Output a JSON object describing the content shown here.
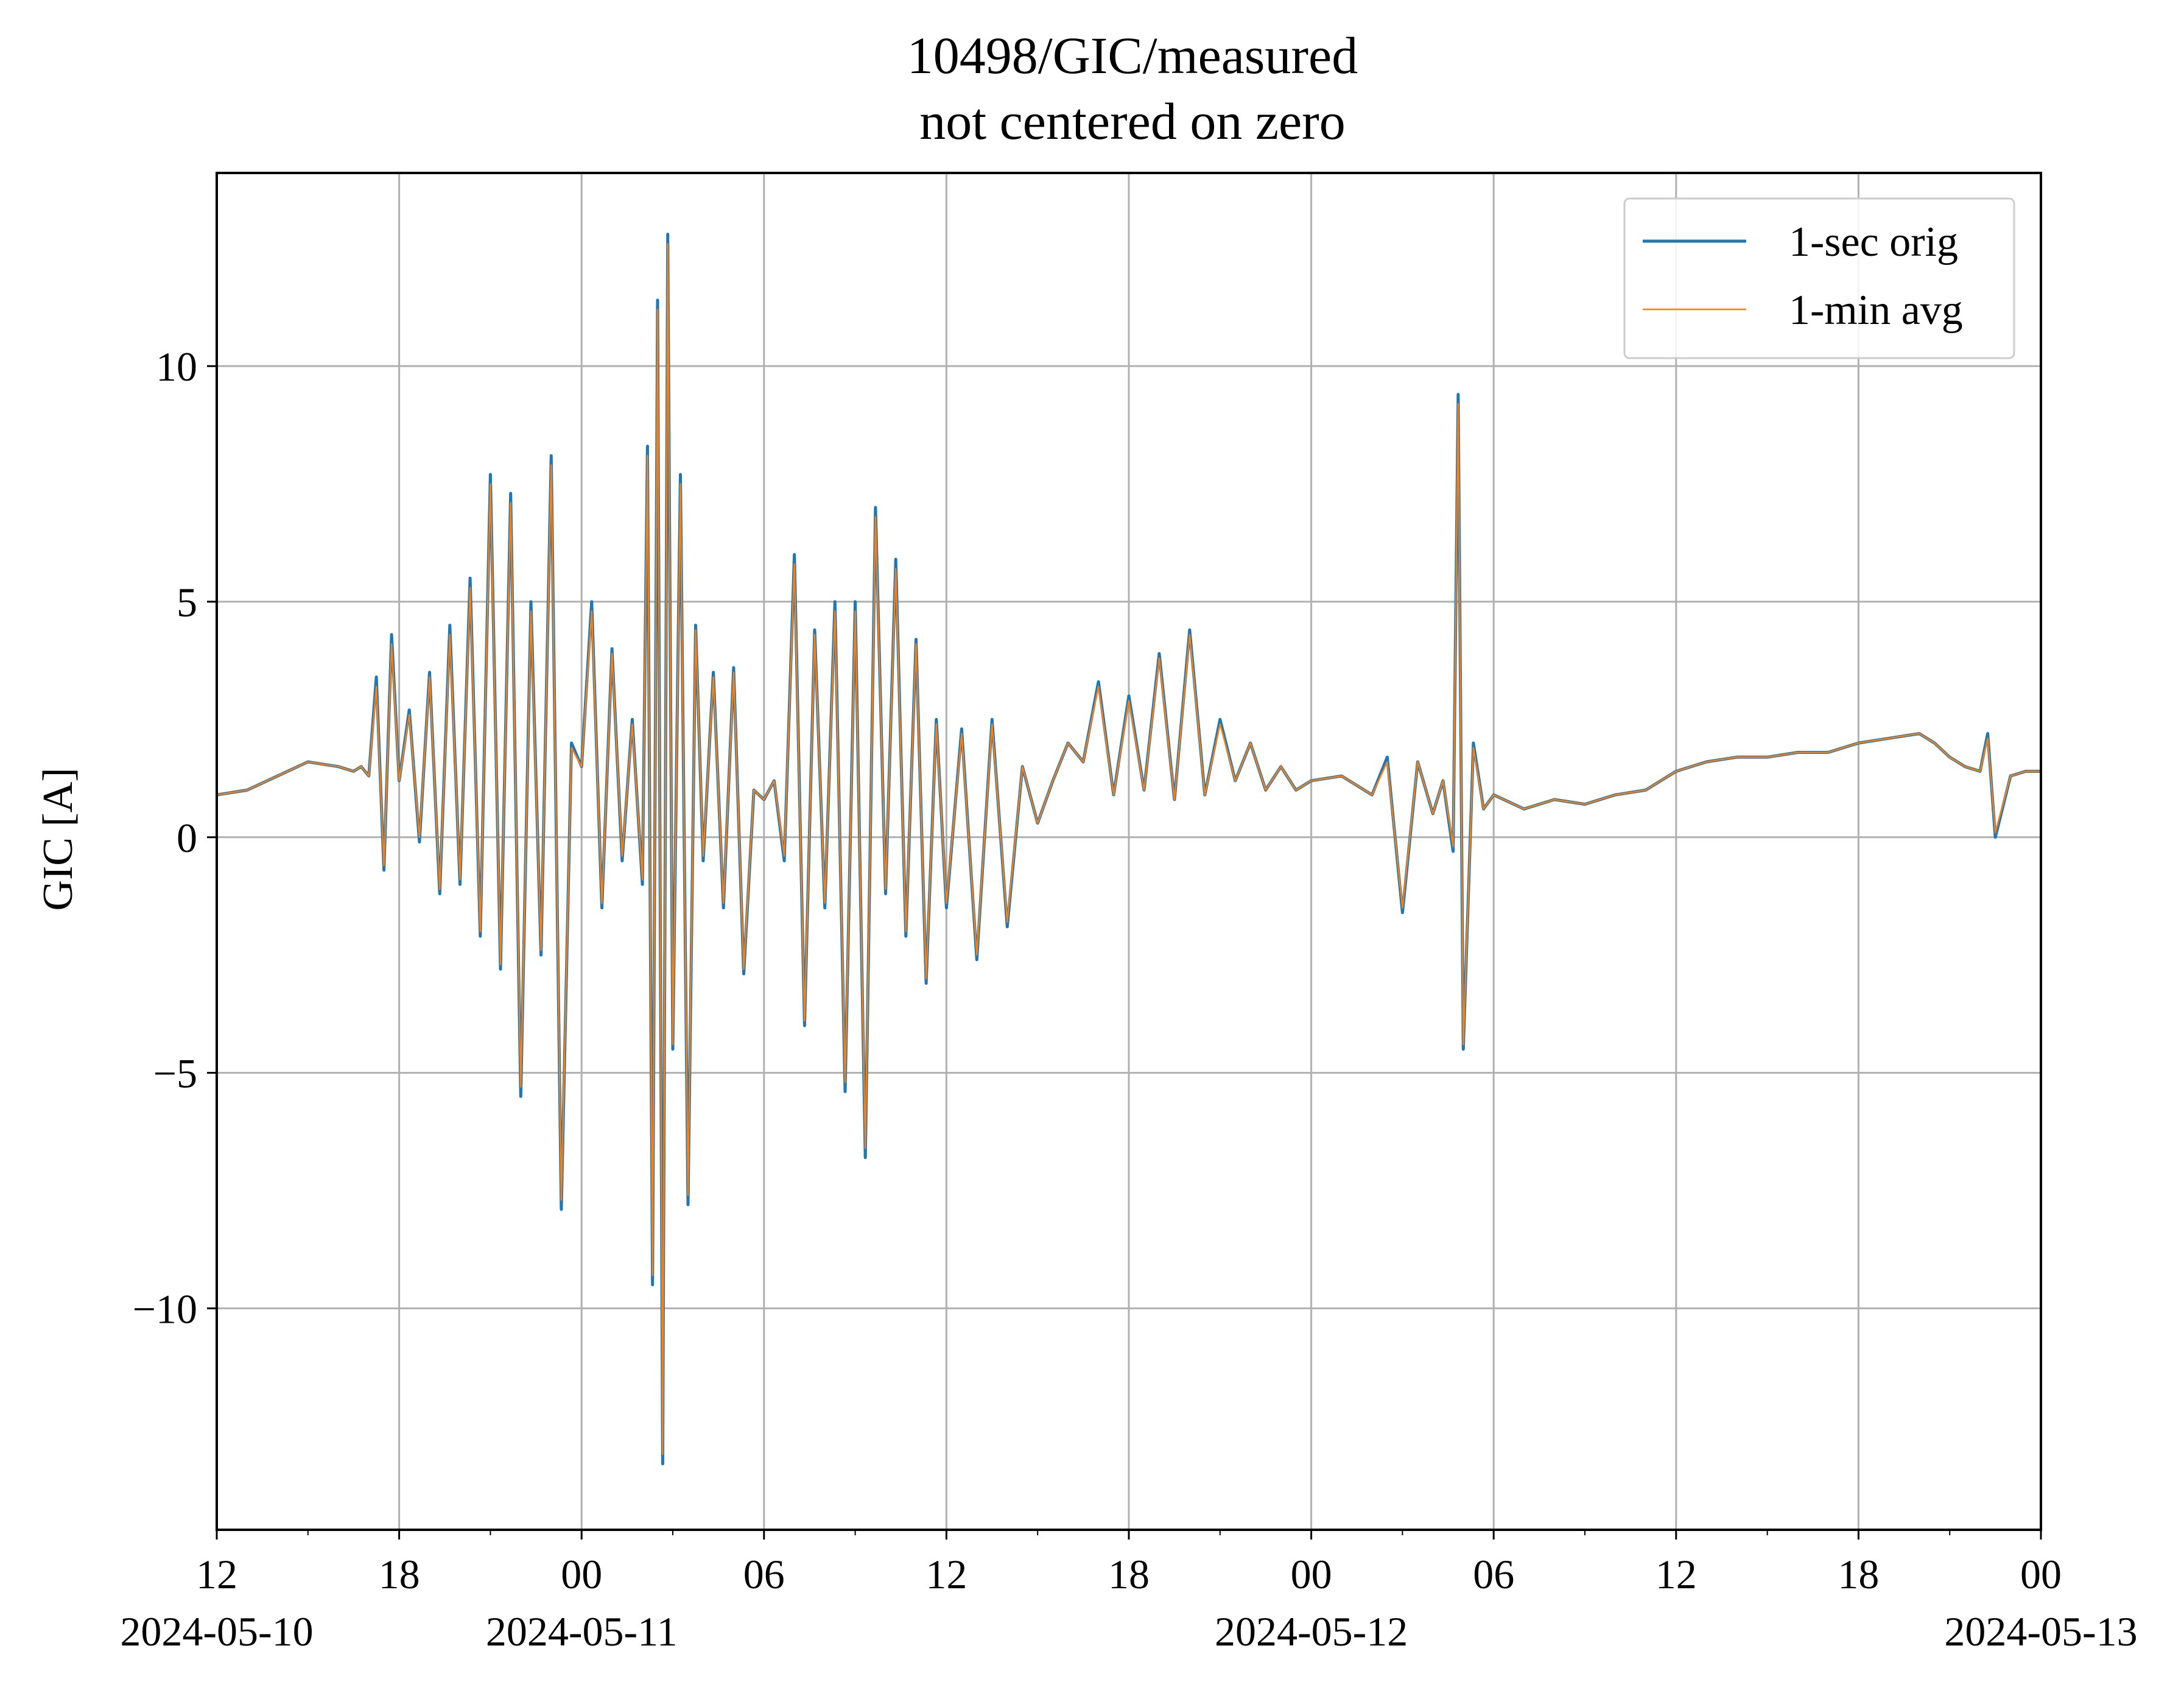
{
  "chart_data": {
    "type": "line",
    "title": "10498/GIC/measured",
    "subtitle": "not centered on zero",
    "ylabel": "GIC [A]",
    "xlabel": "",
    "xlim": [
      "2024-05-10T12:00",
      "2024-05-13T00:00"
    ],
    "ylim": [
      -14.7,
      14.1
    ],
    "grid": true,
    "legend_position": "top-right",
    "y_ticks": [
      {
        "value": 10,
        "label": "10"
      },
      {
        "value": 5,
        "label": "5"
      },
      {
        "value": 0,
        "label": "0"
      },
      {
        "value": -5,
        "label": "−5"
      },
      {
        "value": -10,
        "label": "−10"
      }
    ],
    "x_ticks": [
      {
        "time": "2024-05-10T12:00",
        "label": "12",
        "date_label": "2024-05-10"
      },
      {
        "time": "2024-05-10T18:00",
        "label": "18",
        "date_label": ""
      },
      {
        "time": "2024-05-11T00:00",
        "label": "00",
        "date_label": "2024-05-11"
      },
      {
        "time": "2024-05-11T06:00",
        "label": "06",
        "date_label": ""
      },
      {
        "time": "2024-05-11T12:00",
        "label": "12",
        "date_label": ""
      },
      {
        "time": "2024-05-11T18:00",
        "label": "18",
        "date_label": ""
      },
      {
        "time": "2024-05-12T00:00",
        "label": "00",
        "date_label": "2024-05-12"
      },
      {
        "time": "2024-05-12T06:00",
        "label": "06",
        "date_label": ""
      },
      {
        "time": "2024-05-12T12:00",
        "label": "12",
        "date_label": ""
      },
      {
        "time": "2024-05-12T18:00",
        "label": "18",
        "date_label": ""
      },
      {
        "time": "2024-05-13T00:00",
        "label": "00",
        "date_label": "2024-05-13"
      }
    ],
    "series": [
      {
        "name": "1-sec orig",
        "color": "#1f77b4",
        "x": [
          "2024-05-10T12:00",
          "2024-05-10T13:00",
          "2024-05-10T14:00",
          "2024-05-10T15:00",
          "2024-05-10T16:00",
          "2024-05-10T16:30",
          "2024-05-10T16:45",
          "2024-05-10T17:00",
          "2024-05-10T17:15",
          "2024-05-10T17:30",
          "2024-05-10T17:45",
          "2024-05-10T18:00",
          "2024-05-10T18:20",
          "2024-05-10T18:40",
          "2024-05-10T19:00",
          "2024-05-10T19:20",
          "2024-05-10T19:40",
          "2024-05-10T20:00",
          "2024-05-10T20:20",
          "2024-05-10T20:40",
          "2024-05-10T21:00",
          "2024-05-10T21:20",
          "2024-05-10T21:40",
          "2024-05-10T22:00",
          "2024-05-10T22:20",
          "2024-05-10T22:40",
          "2024-05-10T23:00",
          "2024-05-10T23:20",
          "2024-05-10T23:40",
          "2024-05-11T00:00",
          "2024-05-11T00:20",
          "2024-05-11T00:40",
          "2024-05-11T01:00",
          "2024-05-11T01:20",
          "2024-05-11T01:40",
          "2024-05-11T02:00",
          "2024-05-11T02:10",
          "2024-05-11T02:20",
          "2024-05-11T02:30",
          "2024-05-11T02:40",
          "2024-05-11T02:50",
          "2024-05-11T03:00",
          "2024-05-11T03:15",
          "2024-05-11T03:30",
          "2024-05-11T03:45",
          "2024-05-11T04:00",
          "2024-05-11T04:20",
          "2024-05-11T04:40",
          "2024-05-11T05:00",
          "2024-05-11T05:20",
          "2024-05-11T05:40",
          "2024-05-11T06:00",
          "2024-05-11T06:20",
          "2024-05-11T06:40",
          "2024-05-11T07:00",
          "2024-05-11T07:20",
          "2024-05-11T07:40",
          "2024-05-11T08:00",
          "2024-05-11T08:20",
          "2024-05-11T08:40",
          "2024-05-11T09:00",
          "2024-05-11T09:20",
          "2024-05-11T09:40",
          "2024-05-11T10:00",
          "2024-05-11T10:20",
          "2024-05-11T10:40",
          "2024-05-11T11:00",
          "2024-05-11T11:20",
          "2024-05-11T11:40",
          "2024-05-11T12:00",
          "2024-05-11T12:30",
          "2024-05-11T13:00",
          "2024-05-11T13:30",
          "2024-05-11T14:00",
          "2024-05-11T14:30",
          "2024-05-11T15:00",
          "2024-05-11T15:30",
          "2024-05-11T16:00",
          "2024-05-11T16:30",
          "2024-05-11T17:00",
          "2024-05-11T17:30",
          "2024-05-11T18:00",
          "2024-05-11T18:30",
          "2024-05-11T19:00",
          "2024-05-11T19:30",
          "2024-05-11T20:00",
          "2024-05-11T20:30",
          "2024-05-11T21:00",
          "2024-05-11T21:30",
          "2024-05-11T22:00",
          "2024-05-11T22:30",
          "2024-05-11T23:00",
          "2024-05-11T23:30",
          "2024-05-12T00:00",
          "2024-05-12T01:00",
          "2024-05-12T02:00",
          "2024-05-12T02:30",
          "2024-05-12T03:00",
          "2024-05-12T03:30",
          "2024-05-12T04:00",
          "2024-05-12T04:20",
          "2024-05-12T04:40",
          "2024-05-12T04:50",
          "2024-05-12T05:00",
          "2024-05-12T05:20",
          "2024-05-12T05:40",
          "2024-05-12T06:00",
          "2024-05-12T07:00",
          "2024-05-12T08:00",
          "2024-05-12T09:00",
          "2024-05-12T10:00",
          "2024-05-12T11:00",
          "2024-05-12T12:00",
          "2024-05-12T13:00",
          "2024-05-12T14:00",
          "2024-05-12T15:00",
          "2024-05-12T16:00",
          "2024-05-12T17:00",
          "2024-05-12T18:00",
          "2024-05-12T19:00",
          "2024-05-12T20:00",
          "2024-05-12T20:30",
          "2024-05-12T21:00",
          "2024-05-12T21:30",
          "2024-05-12T22:00",
          "2024-05-12T22:15",
          "2024-05-12T22:30",
          "2024-05-12T23:00",
          "2024-05-12T23:30",
          "2024-05-13T00:00"
        ],
        "y": [
          0.9,
          1.0,
          1.3,
          1.6,
          1.5,
          1.4,
          1.5,
          1.3,
          3.4,
          -0.7,
          4.3,
          1.2,
          2.7,
          -0.1,
          3.5,
          -1.2,
          4.5,
          -1.0,
          5.5,
          -2.1,
          7.7,
          -2.8,
          7.3,
          -5.5,
          5.0,
          -2.5,
          8.1,
          -7.9,
          2.0,
          1.5,
          5.0,
          -1.5,
          4.0,
          -0.5,
          2.5,
          -1.0,
          8.3,
          -9.5,
          11.4,
          -13.3,
          12.8,
          -4.5,
          7.7,
          -7.8,
          4.5,
          -0.5,
          3.5,
          -1.5,
          3.6,
          -2.9,
          1.0,
          0.8,
          1.2,
          -0.5,
          6.0,
          -4.0,
          4.4,
          -1.5,
          5.0,
          -5.4,
          5.0,
          -6.8,
          7.0,
          -1.2,
          5.9,
          -2.1,
          4.2,
          -3.1,
          2.5,
          -1.5,
          2.3,
          -2.6,
          2.5,
          -1.9,
          1.5,
          0.3,
          1.2,
          2.0,
          1.6,
          3.3,
          0.9,
          3.0,
          1.0,
          3.9,
          0.8,
          4.4,
          0.9,
          2.5,
          1.2,
          2.0,
          1.0,
          1.5,
          1.0,
          1.2,
          1.3,
          0.9,
          1.7,
          -1.6,
          1.6,
          0.5,
          1.2,
          -0.3,
          9.4,
          -4.5,
          2.0,
          0.6,
          0.9,
          0.6,
          0.8,
          0.7,
          0.9,
          1.0,
          1.4,
          1.6,
          1.7,
          1.7,
          1.8,
          1.8,
          2.0,
          2.1,
          2.2,
          2.0,
          1.7,
          1.5,
          1.4,
          2.2,
          0.0,
          1.3,
          1.4,
          1.4
        ]
      },
      {
        "name": "1-min avg",
        "color": "#ff7f0e",
        "x": [
          "2024-05-10T12:00",
          "2024-05-10T13:00",
          "2024-05-10T14:00",
          "2024-05-10T15:00",
          "2024-05-10T16:00",
          "2024-05-10T16:30",
          "2024-05-10T16:45",
          "2024-05-10T17:00",
          "2024-05-10T17:15",
          "2024-05-10T17:30",
          "2024-05-10T17:45",
          "2024-05-10T18:00",
          "2024-05-10T18:20",
          "2024-05-10T18:40",
          "2024-05-10T19:00",
          "2024-05-10T19:20",
          "2024-05-10T19:40",
          "2024-05-10T20:00",
          "2024-05-10T20:20",
          "2024-05-10T20:40",
          "2024-05-10T21:00",
          "2024-05-10T21:20",
          "2024-05-10T21:40",
          "2024-05-10T22:00",
          "2024-05-10T22:20",
          "2024-05-10T22:40",
          "2024-05-10T23:00",
          "2024-05-10T23:20",
          "2024-05-10T23:40",
          "2024-05-11T00:00",
          "2024-05-11T00:20",
          "2024-05-11T00:40",
          "2024-05-11T01:00",
          "2024-05-11T01:20",
          "2024-05-11T01:40",
          "2024-05-11T02:00",
          "2024-05-11T02:10",
          "2024-05-11T02:20",
          "2024-05-11T02:30",
          "2024-05-11T02:40",
          "2024-05-11T02:50",
          "2024-05-11T03:00",
          "2024-05-11T03:15",
          "2024-05-11T03:30",
          "2024-05-11T03:45",
          "2024-05-11T04:00",
          "2024-05-11T04:20",
          "2024-05-11T04:40",
          "2024-05-11T05:00",
          "2024-05-11T05:20",
          "2024-05-11T05:40",
          "2024-05-11T06:00",
          "2024-05-11T06:20",
          "2024-05-11T06:40",
          "2024-05-11T07:00",
          "2024-05-11T07:20",
          "2024-05-11T07:40",
          "2024-05-11T08:00",
          "2024-05-11T08:20",
          "2024-05-11T08:40",
          "2024-05-11T09:00",
          "2024-05-11T09:20",
          "2024-05-11T09:40",
          "2024-05-11T10:00",
          "2024-05-11T10:20",
          "2024-05-11T10:40",
          "2024-05-11T11:00",
          "2024-05-11T11:20",
          "2024-05-11T11:40",
          "2024-05-11T12:00",
          "2024-05-11T12:30",
          "2024-05-11T13:00",
          "2024-05-11T13:30",
          "2024-05-11T14:00",
          "2024-05-11T14:30",
          "2024-05-11T15:00",
          "2024-05-11T15:30",
          "2024-05-11T16:00",
          "2024-05-11T16:30",
          "2024-05-11T17:00",
          "2024-05-11T17:30",
          "2024-05-11T18:00",
          "2024-05-11T18:30",
          "2024-05-11T19:00",
          "2024-05-11T19:30",
          "2024-05-11T20:00",
          "2024-05-11T20:30",
          "2024-05-11T21:00",
          "2024-05-11T21:30",
          "2024-05-11T22:00",
          "2024-05-11T22:30",
          "2024-05-11T23:00",
          "2024-05-11T23:30",
          "2024-05-12T00:00",
          "2024-05-12T01:00",
          "2024-05-12T02:00",
          "2024-05-12T02:30",
          "2024-05-12T03:00",
          "2024-05-12T03:30",
          "2024-05-12T04:00",
          "2024-05-12T04:20",
          "2024-05-12T04:40",
          "2024-05-12T04:50",
          "2024-05-12T05:00",
          "2024-05-12T05:20",
          "2024-05-12T05:40",
          "2024-05-12T06:00",
          "2024-05-12T07:00",
          "2024-05-12T08:00",
          "2024-05-12T09:00",
          "2024-05-12T10:00",
          "2024-05-12T11:00",
          "2024-05-12T12:00",
          "2024-05-12T13:00",
          "2024-05-12T14:00",
          "2024-05-12T15:00",
          "2024-05-12T16:00",
          "2024-05-12T17:00",
          "2024-05-12T18:00",
          "2024-05-12T19:00",
          "2024-05-12T20:00",
          "2024-05-12T20:30",
          "2024-05-12T21:00",
          "2024-05-12T21:30",
          "2024-05-12T22:00",
          "2024-05-12T22:15",
          "2024-05-12T22:30",
          "2024-05-12T23:00",
          "2024-05-12T23:30",
          "2024-05-13T00:00"
        ],
        "y": [
          0.9,
          1.0,
          1.3,
          1.6,
          1.5,
          1.4,
          1.5,
          1.3,
          3.2,
          -0.6,
          4.1,
          1.2,
          2.6,
          0.0,
          3.4,
          -1.1,
          4.3,
          -0.9,
          5.3,
          -2.0,
          7.5,
          -2.7,
          7.1,
          -5.3,
          4.8,
          -2.4,
          7.9,
          -7.7,
          1.9,
          1.5,
          4.8,
          -1.4,
          3.9,
          -0.4,
          2.4,
          -0.9,
          8.1,
          -9.3,
          11.2,
          -13.1,
          12.6,
          -4.4,
          7.5,
          -7.6,
          4.4,
          -0.4,
          3.4,
          -1.4,
          3.5,
          -2.8,
          1.0,
          0.8,
          1.2,
          -0.4,
          5.8,
          -3.9,
          4.3,
          -1.4,
          4.8,
          -5.2,
          4.8,
          -6.6,
          6.8,
          -1.1,
          5.7,
          -2.0,
          4.1,
          -3.0,
          2.4,
          -1.4,
          2.2,
          -2.5,
          2.4,
          -1.8,
          1.5,
          0.3,
          1.2,
          2.0,
          1.6,
          3.2,
          0.9,
          2.9,
          1.0,
          3.8,
          0.8,
          4.3,
          0.9,
          2.4,
          1.2,
          2.0,
          1.0,
          1.5,
          1.0,
          1.2,
          1.3,
          0.9,
          1.6,
          -1.5,
          1.6,
          0.5,
          1.2,
          -0.2,
          9.2,
          -4.4,
          1.9,
          0.6,
          0.9,
          0.6,
          0.8,
          0.7,
          0.9,
          1.0,
          1.4,
          1.6,
          1.7,
          1.7,
          1.8,
          1.8,
          2.0,
          2.1,
          2.2,
          2.0,
          1.7,
          1.5,
          1.4,
          2.1,
          0.1,
          1.3,
          1.4,
          1.4
        ]
      }
    ]
  }
}
